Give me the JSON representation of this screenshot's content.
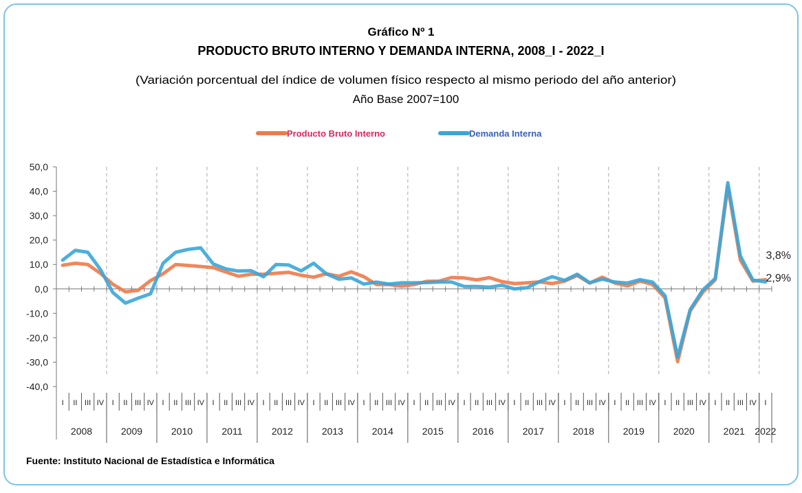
{
  "chart_data": {
    "type": "line",
    "heading": "Gráfico Nº 1",
    "title": "PRODUCTO BRUTO INTERNO Y DEMANDA INTERNA, 2008_I - 2022_I",
    "subtitle": "(Variación porcentual del índice de volumen físico respecto al mismo periodo del año anterior)",
    "base_note": "Año Base 2007=100",
    "source": "Fuente: Instituto Nacional de Estadística e Informática",
    "categories": [
      "I",
      "II",
      "III",
      "IV",
      "I",
      "II",
      "III",
      "IV",
      "I",
      "II",
      "III",
      "IV",
      "I",
      "II",
      "III",
      "IV",
      "I",
      "II",
      "III",
      "IV",
      "I",
      "II",
      "III",
      "IV",
      "I",
      "II",
      "III",
      "IV",
      "I",
      "II",
      "III",
      "IV",
      "I",
      "II",
      "III",
      "IV",
      "I",
      "II",
      "III",
      "IV",
      "I",
      "II",
      "III",
      "IV",
      "I",
      "II",
      "III",
      "IV",
      "I",
      "II",
      "III",
      "IV",
      "I",
      "II",
      "III",
      "IV",
      "I"
    ],
    "years": [
      "2008",
      "2009",
      "2010",
      "2011",
      "2012",
      "2013",
      "2014",
      "2015",
      "2016",
      "2017",
      "2018",
      "2019",
      "2020",
      "2021",
      "2022"
    ],
    "series": [
      {
        "name": "Producto Bruto Interno",
        "color": "#ee7a4a",
        "values": [
          9.7,
          10.5,
          10.0,
          6.4,
          1.9,
          -1.2,
          -0.6,
          3.4,
          6.2,
          10.0,
          9.6,
          9.2,
          8.7,
          6.9,
          5.2,
          6.0,
          6.0,
          6.4,
          6.8,
          5.6,
          4.8,
          6.2,
          5.2,
          7.0,
          5.0,
          1.8,
          1.8,
          1.1,
          1.8,
          3.1,
          3.2,
          4.7,
          4.5,
          3.7,
          4.6,
          3.0,
          2.2,
          2.5,
          2.9,
          2.2,
          3.2,
          5.5,
          2.4,
          4.8,
          2.4,
          1.2,
          3.2,
          1.8,
          -3.7,
          -29.8,
          -9.0,
          -1.4,
          3.8,
          41.9,
          11.8,
          3.2,
          3.8
        ],
        "value_labels": [
          null,
          null,
          null,
          null,
          null,
          null,
          null,
          null,
          null,
          null,
          null,
          null,
          null,
          null,
          null,
          null,
          null,
          null,
          null,
          null,
          null,
          null,
          null,
          null,
          null,
          null,
          null,
          null,
          null,
          null,
          null,
          null,
          null,
          null,
          null,
          null,
          null,
          null,
          null,
          null,
          null,
          null,
          null,
          null,
          null,
          null,
          null,
          null,
          null,
          null,
          null,
          null,
          null,
          null,
          null,
          null,
          "3,8%"
        ]
      },
      {
        "name": "Demanda Interna",
        "color": "#3aa6d8",
        "values": [
          11.8,
          15.8,
          15.0,
          8.0,
          -1.5,
          -5.8,
          -3.8,
          -2.0,
          10.5,
          15.0,
          16.2,
          16.8,
          10.2,
          8.2,
          7.3,
          7.5,
          5.0,
          10.0,
          9.8,
          7.4,
          10.5,
          6.2,
          4.0,
          4.5,
          2.0,
          2.8,
          2.0,
          2.5,
          2.5,
          2.6,
          2.8,
          2.8,
          1.0,
          1.0,
          0.7,
          1.5,
          0.0,
          0.5,
          3.0,
          5.0,
          3.5,
          6.0,
          2.5,
          4.0,
          2.8,
          2.4,
          3.8,
          2.8,
          -2.8,
          -27.9,
          -8.5,
          -0.5,
          4.3,
          43.5,
          13.5,
          3.6,
          2.9
        ],
        "value_labels": [
          null,
          null,
          null,
          null,
          null,
          null,
          null,
          null,
          null,
          null,
          null,
          null,
          null,
          null,
          null,
          null,
          null,
          null,
          null,
          null,
          null,
          null,
          null,
          null,
          null,
          null,
          null,
          null,
          null,
          null,
          null,
          null,
          null,
          null,
          null,
          null,
          null,
          null,
          null,
          null,
          null,
          null,
          null,
          null,
          null,
          null,
          null,
          null,
          null,
          null,
          null,
          null,
          null,
          null,
          null,
          null,
          "2,9%"
        ]
      }
    ],
    "ylim": [
      -40,
      50
    ],
    "yticks": [
      {
        "value": 50,
        "label": "50,0"
      },
      {
        "value": 40,
        "label": "40,0"
      },
      {
        "value": 30,
        "label": "30,0"
      },
      {
        "value": 20,
        "label": "20,0"
      },
      {
        "value": 10,
        "label": "10,0"
      },
      {
        "value": 0,
        "label": "0,0"
      },
      {
        "value": -10,
        "label": "-10,0"
      },
      {
        "value": -20,
        "label": "-20,0"
      },
      {
        "value": -30,
        "label": "-30,0"
      },
      {
        "value": -40,
        "label": "-40,0"
      }
    ],
    "legend": "top"
  }
}
